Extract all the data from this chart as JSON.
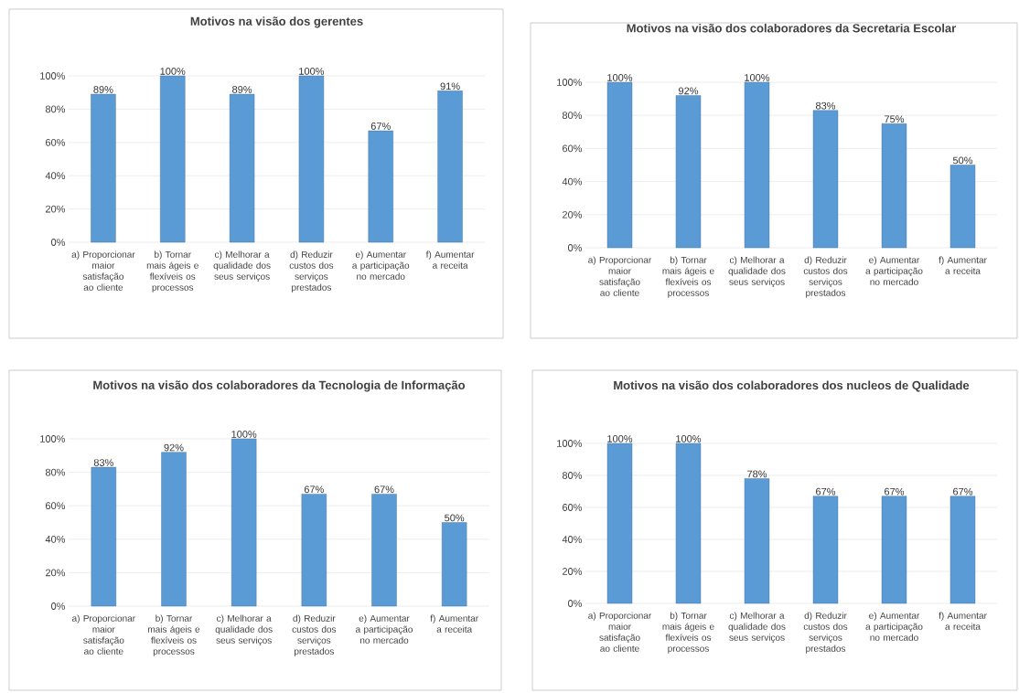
{
  "chart_data": [
    {
      "type": "bar",
      "title": "Motivos na visão dos gerentes",
      "categories": [
        "a) Proporcionar maior satisfação ao cliente",
        "b) Tornar mais ágeis e flexíveis os processos",
        "c) Melhorar a qualidade dos seus serviços",
        "d) Reduzir custos dos serviços prestados",
        "e) Aumentar a participação no mercado",
        "f) Aumentar a receita"
      ],
      "values": [
        89,
        100,
        89,
        100,
        67,
        91
      ],
      "value_labels": [
        "89%",
        "100%",
        "89%",
        "100%",
        "67%",
        "91%"
      ],
      "color": "#5b9bd5",
      "ylim": [
        0,
        100
      ],
      "yticks": [
        {
          "value": 0,
          "label": "0%"
        },
        {
          "value": 20,
          "label": "20%"
        },
        {
          "value": 40,
          "label": "40%"
        },
        {
          "value": 60,
          "label": "60%"
        },
        {
          "value": 80,
          "label": "80%"
        },
        {
          "value": 100,
          "label": "100%"
        }
      ],
      "grid": "y"
    },
    {
      "type": "bar",
      "title": "Motivos na visão dos colaboradores da Secretaria Escolar",
      "categories": [
        "a) Proporcionar maior satisfação ao cliente",
        "b) Tornar mais ágeis e flexíveis os processos",
        "c) Melhorar a qualidade dos seus serviços",
        "d) Reduzir custos dos serviços prestados",
        "e) Aumentar a participação no mercado",
        "f) Aumentar a receita"
      ],
      "values": [
        100,
        92,
        100,
        83,
        75,
        50
      ],
      "value_labels": [
        "100%",
        "92%",
        "100%",
        "83%",
        "75%",
        "50%"
      ],
      "color": "#5b9bd5",
      "ylim": [
        0,
        100
      ],
      "yticks": [
        {
          "value": 0,
          "label": "0%"
        },
        {
          "value": 20,
          "label": "20%"
        },
        {
          "value": 40,
          "label": "40%"
        },
        {
          "value": 60,
          "label": "60%"
        },
        {
          "value": 80,
          "label": "80%"
        },
        {
          "value": 100,
          "label": "100%"
        }
      ],
      "grid": "y"
    },
    {
      "type": "bar",
      "title": "Motivos na visão dos colaboradores da Tecnologia de Informação",
      "categories": [
        "a) Proporcionar maior satisfação ao cliente",
        "b) Tornar mais ágeis e flexíveis os processos",
        "c) Melhorar a qualidade dos seus serviços",
        "d) Reduzir custos dos serviços prestados",
        "e) Aumentar a participação no mercado",
        "f) Aumentar a receita"
      ],
      "values": [
        83,
        92,
        100,
        67,
        67,
        50
      ],
      "value_labels": [
        "83%",
        "92%",
        "100%",
        "67%",
        "67%",
        "50%"
      ],
      "color": "#5b9bd5",
      "ylim": [
        0,
        100
      ],
      "yticks": [
        {
          "value": 0,
          "label": "0%"
        },
        {
          "value": 20,
          "label": "20%"
        },
        {
          "value": 40,
          "label": "40%"
        },
        {
          "value": 60,
          "label": "60%"
        },
        {
          "value": 80,
          "label": "80%"
        },
        {
          "value": 100,
          "label": "100%"
        }
      ],
      "grid": "y"
    },
    {
      "type": "bar",
      "title": "Motivos na visão dos colaboradores dos nucleos de Qualidade",
      "categories": [
        "a) Proporcionar maior satisfação ao cliente",
        "b) Tornar mais ágeis e flexíveis os processos",
        "c) Melhorar a qualidade dos seus serviços",
        "d) Reduzir custos dos serviços prestados",
        "e) Aumentar a participação no mercado",
        "f) Aumentar a receita"
      ],
      "values": [
        100,
        100,
        78,
        67,
        67,
        67
      ],
      "value_labels": [
        "100%",
        "100%",
        "78%",
        "67%",
        "67%",
        "67%"
      ],
      "color": "#5b9bd5",
      "ylim": [
        0,
        100
      ],
      "yticks": [
        {
          "value": 0,
          "label": "0%"
        },
        {
          "value": 20,
          "label": "20%"
        },
        {
          "value": 40,
          "label": "40%"
        },
        {
          "value": 60,
          "label": "60%"
        },
        {
          "value": 80,
          "label": "80%"
        },
        {
          "value": 100,
          "label": "100%"
        }
      ],
      "grid": "y"
    }
  ]
}
